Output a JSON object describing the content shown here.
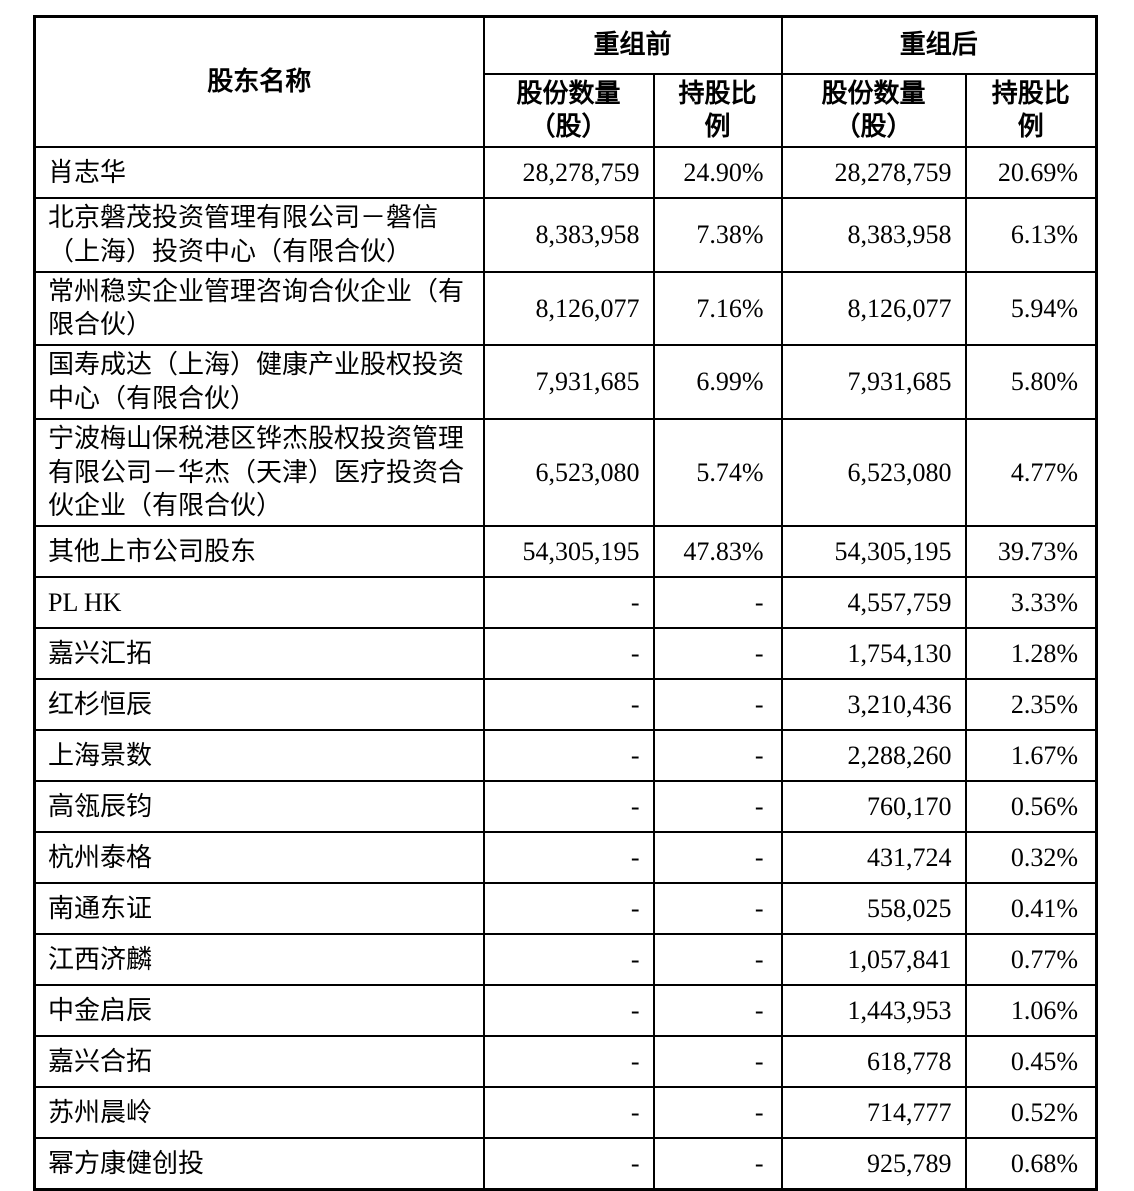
{
  "table": {
    "shareholder_col_header": "股东名称",
    "group_before": "重组前",
    "group_after": "重组后",
    "sub_shares": "股份数量\n（股）",
    "sub_ratio": "持股比\n例",
    "rows": [
      {
        "name": "肖志华",
        "pre_shares": "28,278,759",
        "pre_ratio": "24.90%",
        "post_shares": "28,278,759",
        "post_ratio": "20.69%"
      },
      {
        "name": "北京磐茂投资管理有限公司－磐信（上海）投资中心（有限合伙）",
        "pre_shares": "8,383,958",
        "pre_ratio": "7.38%",
        "post_shares": "8,383,958",
        "post_ratio": "6.13%"
      },
      {
        "name": "常州稳实企业管理咨询合伙企业（有限合伙）",
        "pre_shares": "8,126,077",
        "pre_ratio": "7.16%",
        "post_shares": "8,126,077",
        "post_ratio": "5.94%"
      },
      {
        "name": "国寿成达（上海）健康产业股权投资中心（有限合伙）",
        "pre_shares": "7,931,685",
        "pre_ratio": "6.99%",
        "post_shares": "7,931,685",
        "post_ratio": "5.80%"
      },
      {
        "name": "宁波梅山保税港区铧杰股权投资管理有限公司－华杰（天津）医疗投资合伙企业（有限合伙）",
        "pre_shares": "6,523,080",
        "pre_ratio": "5.74%",
        "post_shares": "6,523,080",
        "post_ratio": "4.77%"
      },
      {
        "name": "其他上市公司股东",
        "pre_shares": "54,305,195",
        "pre_ratio": "47.83%",
        "post_shares": "54,305,195",
        "post_ratio": "39.73%"
      },
      {
        "name": "PL HK",
        "pre_shares": "-",
        "pre_ratio": "-",
        "post_shares": "4,557,759",
        "post_ratio": "3.33%"
      },
      {
        "name": "嘉兴汇拓",
        "pre_shares": "-",
        "pre_ratio": "-",
        "post_shares": "1,754,130",
        "post_ratio": "1.28%"
      },
      {
        "name": "红杉恒辰",
        "pre_shares": "-",
        "pre_ratio": "-",
        "post_shares": "3,210,436",
        "post_ratio": "2.35%"
      },
      {
        "name": "上海景数",
        "pre_shares": "-",
        "pre_ratio": "-",
        "post_shares": "2,288,260",
        "post_ratio": "1.67%"
      },
      {
        "name": "高瓴辰钧",
        "pre_shares": "-",
        "pre_ratio": "-",
        "post_shares": "760,170",
        "post_ratio": "0.56%"
      },
      {
        "name": "杭州泰格",
        "pre_shares": "-",
        "pre_ratio": "-",
        "post_shares": "431,724",
        "post_ratio": "0.32%"
      },
      {
        "name": "南通东证",
        "pre_shares": "-",
        "pre_ratio": "-",
        "post_shares": "558,025",
        "post_ratio": "0.41%"
      },
      {
        "name": "江西济麟",
        "pre_shares": "-",
        "pre_ratio": "-",
        "post_shares": "1,057,841",
        "post_ratio": "0.77%"
      },
      {
        "name": "中金启辰",
        "pre_shares": "-",
        "pre_ratio": "-",
        "post_shares": "1,443,953",
        "post_ratio": "1.06%"
      },
      {
        "name": "嘉兴合拓",
        "pre_shares": "-",
        "pre_ratio": "-",
        "post_shares": "618,778",
        "post_ratio": "0.45%"
      },
      {
        "name": "苏州晨岭",
        "pre_shares": "-",
        "pre_ratio": "-",
        "post_shares": "714,777",
        "post_ratio": "0.52%"
      },
      {
        "name": "幂方康健创投",
        "pre_shares": "-",
        "pre_ratio": "-",
        "post_shares": "925,789",
        "post_ratio": "0.68%"
      }
    ]
  }
}
